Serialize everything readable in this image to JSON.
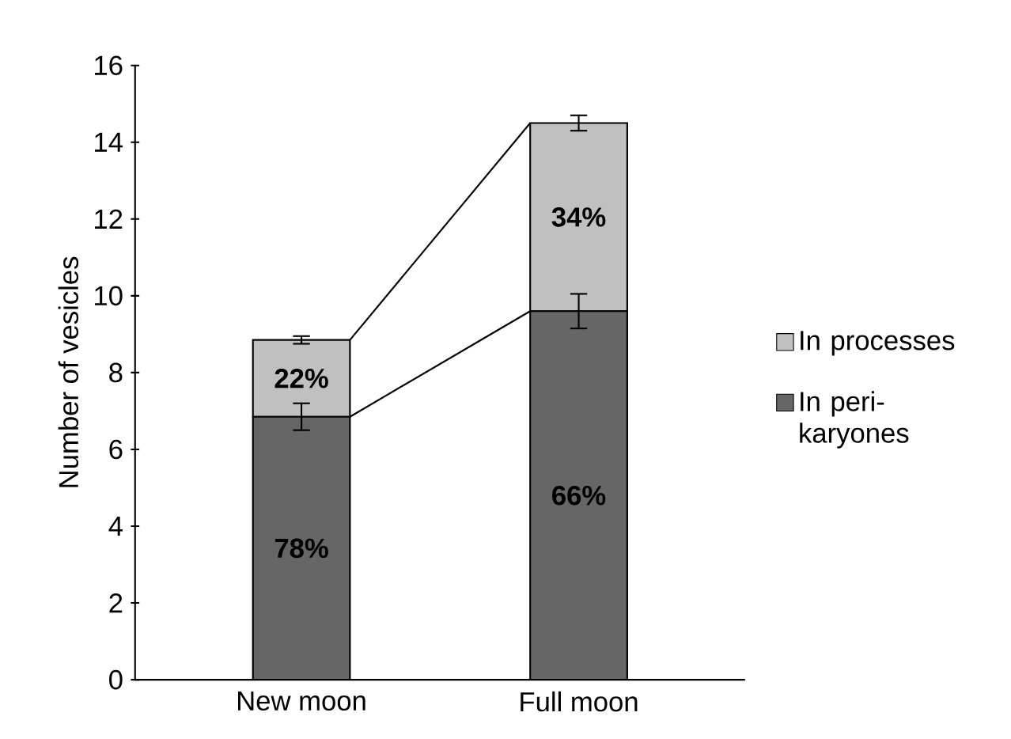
{
  "chart_data": {
    "type": "bar",
    "stacked": true,
    "ylabel": "Number of vesicles",
    "categories": [
      "New moon",
      "Full moon"
    ],
    "series": [
      {
        "name": "In peri-karyones",
        "color": "#666666",
        "values": [
          6.85,
          9.6
        ],
        "errors": [
          0.35,
          0.45
        ]
      },
      {
        "name": "In processes",
        "color": "#c0c0c0",
        "values": [
          2.0,
          4.9
        ],
        "errors": [
          0.1,
          0.2
        ]
      }
    ],
    "annotations": [
      "78%",
      "66%",
      "22%",
      "34%"
    ],
    "ylim": [
      0,
      16
    ],
    "yticks": [
      0,
      2,
      4,
      6,
      8,
      10,
      12,
      14,
      16
    ],
    "legend": "right",
    "grid": false
  }
}
